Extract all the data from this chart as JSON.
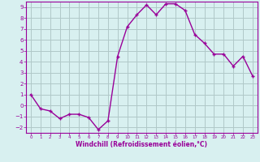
{
  "x": [
    0,
    1,
    2,
    3,
    4,
    5,
    6,
    7,
    8,
    9,
    10,
    11,
    12,
    13,
    14,
    15,
    16,
    17,
    18,
    19,
    20,
    21,
    22,
    23
  ],
  "y": [
    1,
    -0.3,
    -0.5,
    -1.2,
    -0.8,
    -0.8,
    -1.1,
    -2.2,
    -1.4,
    4.5,
    7.2,
    8.3,
    9.2,
    8.3,
    9.3,
    9.3,
    8.7,
    6.5,
    5.7,
    4.7,
    4.7,
    3.6,
    4.5,
    2.7
  ],
  "line_color": "#990099",
  "marker": "+",
  "bg_color": "#d8f0f0",
  "grid_color": "#b0c8c8",
  "xlabel": "Windchill (Refroidissement éolien,°C)",
  "xlabel_color": "#990099",
  "tick_color": "#990099",
  "ylim": [
    -2.5,
    9.5
  ],
  "xlim": [
    -0.5,
    23.5
  ],
  "yticks": [
    -2,
    -1,
    0,
    1,
    2,
    3,
    4,
    5,
    6,
    7,
    8,
    9
  ],
  "xticks": [
    0,
    1,
    2,
    3,
    4,
    5,
    6,
    7,
    8,
    9,
    10,
    11,
    12,
    13,
    14,
    15,
    16,
    17,
    18,
    19,
    20,
    21,
    22,
    23
  ],
  "font_size_ticks_x": 4.0,
  "font_size_ticks_y": 5.0,
  "font_size_xlabel": 5.5,
  "linewidth": 1.0,
  "markersize": 3.5
}
